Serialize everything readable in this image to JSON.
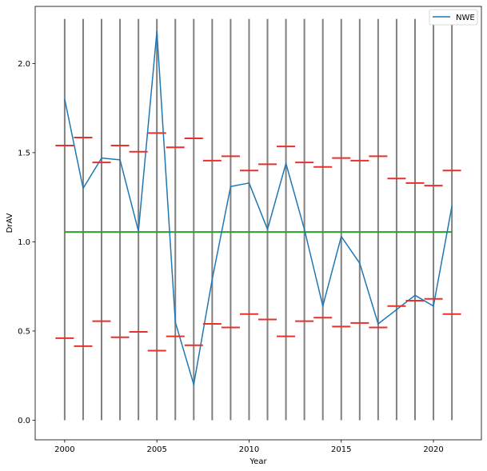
{
  "chart_data": {
    "type": "line",
    "xlabel": "Year",
    "ylabel": "DrAV",
    "xlim": [
      1998.4,
      2022.6
    ],
    "ylim": [
      -0.11,
      2.32
    ],
    "xticks": [
      2000,
      2005,
      2010,
      2015,
      2020
    ],
    "xtick_labels": [
      "2000",
      "2005",
      "2010",
      "2015",
      "2020"
    ],
    "yticks": [
      0.0,
      0.5,
      1.0,
      1.5,
      2.0
    ],
    "ytick_labels": [
      "0.0",
      "0.5",
      "1.0",
      "1.5",
      "2.0"
    ],
    "legend": {
      "placement": "top-right",
      "entries": [
        "NWE"
      ]
    },
    "series": [
      {
        "name": "NWE",
        "color": "#1f77b4",
        "x": [
          2000,
          2001,
          2002,
          2003,
          2004,
          2005,
          2006,
          2007,
          2008,
          2009,
          2010,
          2011,
          2012,
          2013,
          2014,
          2015,
          2016,
          2017,
          2018,
          2019,
          2020,
          2021
        ],
        "y": [
          1.8,
          1.3,
          1.47,
          1.46,
          1.06,
          2.18,
          0.55,
          0.2,
          0.79,
          1.31,
          1.33,
          1.07,
          1.44,
          1.07,
          0.64,
          1.03,
          0.88,
          0.54,
          0.62,
          0.7,
          0.64,
          1.2
        ]
      }
    ],
    "mean_line": {
      "value": 1.055,
      "x_start": 2000,
      "x_end": 2021,
      "color": "#2ca02c"
    },
    "vertical_lines": {
      "x": [
        2000,
        2001,
        2002,
        2003,
        2004,
        2005,
        2006,
        2007,
        2008,
        2009,
        2010,
        2011,
        2012,
        2013,
        2014,
        2015,
        2016,
        2017,
        2018,
        2019,
        2020,
        2021
      ],
      "ymin": 0.0,
      "ymax": 2.25,
      "color": "#808080"
    },
    "upper_bounds": {
      "color": "#e8302c",
      "x": [
        2000,
        2001,
        2002,
        2003,
        2004,
        2005,
        2006,
        2007,
        2008,
        2009,
        2010,
        2011,
        2012,
        2013,
        2014,
        2015,
        2016,
        2017,
        2018,
        2019,
        2020,
        2021
      ],
      "y": [
        1.54,
        1.585,
        1.445,
        1.54,
        1.505,
        1.61,
        1.53,
        1.58,
        1.455,
        1.48,
        1.4,
        1.435,
        1.535,
        1.445,
        1.42,
        1.47,
        1.455,
        1.48,
        1.355,
        1.33,
        1.315,
        1.4
      ]
    },
    "lower_bounds": {
      "color": "#e8302c",
      "x": [
        2000,
        2001,
        2002,
        2003,
        2004,
        2005,
        2006,
        2007,
        2008,
        2009,
        2010,
        2011,
        2012,
        2013,
        2014,
        2015,
        2016,
        2017,
        2018,
        2019,
        2020,
        2021
      ],
      "y": [
        0.46,
        0.415,
        0.555,
        0.465,
        0.495,
        0.39,
        0.47,
        0.42,
        0.54,
        0.52,
        0.595,
        0.565,
        0.47,
        0.555,
        0.575,
        0.525,
        0.545,
        0.52,
        0.64,
        0.67,
        0.68,
        0.595
      ]
    }
  }
}
